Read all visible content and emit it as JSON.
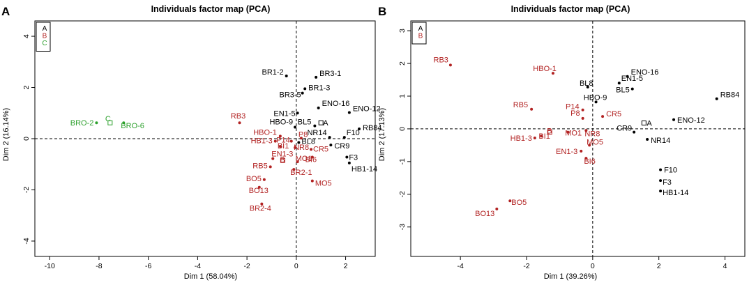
{
  "colors": {
    "A": "#000000",
    "B": "#b22222",
    "C": "#2ca02c"
  },
  "chart_data": [
    {
      "panel_label": "A",
      "type": "scatter",
      "title": "Individuals factor map (PCA)",
      "xlabel": "Dim 1 (58.04%)",
      "ylabel": "Dim 2 (16.14%)",
      "xlim": [
        -10.6,
        3.2
      ],
      "ylim": [
        -4.6,
        4.6
      ],
      "xticks": [
        -10,
        -8,
        -6,
        -4,
        -2,
        0,
        2
      ],
      "yticks": [
        -4,
        -2,
        0,
        2,
        4
      ],
      "grid": false,
      "legend_position": "top-left",
      "legend": [
        "A",
        "B",
        "C"
      ],
      "points": [
        {
          "label": "BR1-2",
          "x": -0.4,
          "y": 2.45,
          "group": "A"
        },
        {
          "label": "BR3-1",
          "x": 0.8,
          "y": 2.4,
          "group": "A"
        },
        {
          "label": "BR1-3",
          "x": 0.35,
          "y": 1.95,
          "group": "A"
        },
        {
          "label": "BR3-5",
          "x": 0.25,
          "y": 1.78,
          "group": "A"
        },
        {
          "label": "ENO-16",
          "x": 0.9,
          "y": 1.2,
          "group": "A"
        },
        {
          "label": "ENO-12",
          "x": 2.15,
          "y": 1.02,
          "group": "A"
        },
        {
          "label": "EN1-5",
          "x": 0.05,
          "y": 1.0,
          "group": "A"
        },
        {
          "label": "HBO-9",
          "x": -0.05,
          "y": 0.45,
          "group": "A"
        },
        {
          "label": "BL5",
          "x": 0.75,
          "y": 0.5,
          "group": "A"
        },
        {
          "label": "RB84",
          "x": 2.55,
          "y": 0.38,
          "group": "A"
        },
        {
          "label": "NR14",
          "x": 1.35,
          "y": 0.05,
          "group": "A"
        },
        {
          "label": "F10",
          "x": 1.95,
          "y": 0.05,
          "group": "A"
        },
        {
          "label": "BL8",
          "x": 0.1,
          "y": -0.15,
          "group": "A"
        },
        {
          "label": "CR9",
          "x": 1.4,
          "y": -0.25,
          "group": "A"
        },
        {
          "label": "F3",
          "x": 2.05,
          "y": -0.72,
          "group": "A"
        },
        {
          "label": "HB1-14",
          "x": 2.15,
          "y": -0.95,
          "group": "A"
        },
        {
          "label": "A",
          "x": 1.0,
          "y": 0.62,
          "group": "A",
          "centroid": true
        },
        {
          "label": "RB3",
          "x": -2.3,
          "y": 0.62,
          "group": "B"
        },
        {
          "label": "HBO-1",
          "x": -0.65,
          "y": 0.1,
          "group": "B"
        },
        {
          "label": "P8",
          "x": 0.2,
          "y": 0.02,
          "group": "B"
        },
        {
          "label": "HB1-3",
          "x": -0.85,
          "y": -0.1,
          "group": "B"
        },
        {
          "label": "P14",
          "x": -0.2,
          "y": -0.1,
          "group": "B"
        },
        {
          "label": "BI1",
          "x": -0.65,
          "y": -0.3,
          "group": "B"
        },
        {
          "label": "NR8",
          "x": -0.05,
          "y": -0.35,
          "group": "B"
        },
        {
          "label": "CR5",
          "x": 0.6,
          "y": -0.42,
          "group": "B"
        },
        {
          "label": "EN1-3",
          "x": -0.95,
          "y": -0.78,
          "group": "B"
        },
        {
          "label": "BI6",
          "x": 0.65,
          "y": -0.72,
          "group": "B"
        },
        {
          "label": "MO1",
          "x": 0.05,
          "y": -0.9,
          "group": "B"
        },
        {
          "label": "RB5",
          "x": -1.05,
          "y": -1.1,
          "group": "B"
        },
        {
          "label": "BR2-1",
          "x": -0.1,
          "y": -1.2,
          "group": "B"
        },
        {
          "label": "BO5",
          "x": -1.3,
          "y": -1.6,
          "group": "B"
        },
        {
          "label": "MO5",
          "x": 0.65,
          "y": -1.65,
          "group": "B"
        },
        {
          "label": "BO13",
          "x": -1.5,
          "y": -1.9,
          "group": "B"
        },
        {
          "label": "BR2-4",
          "x": -1.4,
          "y": -2.55,
          "group": "B"
        },
        {
          "label": "B",
          "x": -0.55,
          "y": -0.85,
          "group": "B",
          "centroid": true
        },
        {
          "label": "BRO-2",
          "x": -8.1,
          "y": 0.62,
          "group": "C"
        },
        {
          "label": "BRO-6",
          "x": -7.0,
          "y": 0.62,
          "group": "C"
        },
        {
          "label": "C",
          "x": -7.55,
          "y": 0.62,
          "group": "C",
          "centroid": true
        }
      ]
    },
    {
      "panel_label": "B",
      "type": "scatter",
      "title": "Individuals factor map (PCA)",
      "xlabel": "Dim 1 (39.26%)",
      "ylabel": "Dim 2 (17.13%)",
      "xlim": [
        -5.5,
        4.6
      ],
      "ylim": [
        -3.9,
        3.3
      ],
      "xticks": [
        -4,
        -2,
        0,
        2,
        4
      ],
      "yticks": [
        -3,
        -2,
        -1,
        0,
        1,
        2,
        3
      ],
      "grid": false,
      "legend_position": "top-left",
      "legend": [
        "A",
        "B"
      ],
      "points": [
        {
          "label": "ENO-16",
          "x": 1.05,
          "y": 1.6,
          "group": "A"
        },
        {
          "label": "EN1-5",
          "x": 0.8,
          "y": 1.4,
          "group": "A"
        },
        {
          "label": "BL5",
          "x": 1.2,
          "y": 1.22,
          "group": "A"
        },
        {
          "label": "BL8",
          "x": -0.15,
          "y": 1.28,
          "group": "A"
        },
        {
          "label": "HBO-9",
          "x": 0.1,
          "y": 0.82,
          "group": "A"
        },
        {
          "label": "RB84",
          "x": 3.75,
          "y": 0.92,
          "group": "A"
        },
        {
          "label": "ENO-12",
          "x": 2.45,
          "y": 0.28,
          "group": "A"
        },
        {
          "label": "CR9",
          "x": 1.25,
          "y": -0.1,
          "group": "A"
        },
        {
          "label": "NR14",
          "x": 1.65,
          "y": -0.32,
          "group": "A"
        },
        {
          "label": "F10",
          "x": 2.05,
          "y": -1.25,
          "group": "A"
        },
        {
          "label": "F3",
          "x": 2.05,
          "y": -1.58,
          "group": "A"
        },
        {
          "label": "HB1-14",
          "x": 2.05,
          "y": -1.9,
          "group": "A"
        },
        {
          "label": "A",
          "x": 1.55,
          "y": 0.18,
          "group": "A",
          "centroid": true
        },
        {
          "label": "RB3",
          "x": -4.3,
          "y": 1.95,
          "group": "B"
        },
        {
          "label": "HBO-1",
          "x": -1.2,
          "y": 1.7,
          "group": "B"
        },
        {
          "label": "RB5",
          "x": -1.85,
          "y": 0.6,
          "group": "B"
        },
        {
          "label": "P14",
          "x": -0.3,
          "y": 0.58,
          "group": "B"
        },
        {
          "label": "CR5",
          "x": 0.3,
          "y": 0.38,
          "group": "B"
        },
        {
          "label": "P8",
          "x": -0.3,
          "y": 0.32,
          "group": "B"
        },
        {
          "label": "MO1",
          "x": -0.75,
          "y": -0.1,
          "group": "B"
        },
        {
          "label": "NR8",
          "x": -0.2,
          "y": -0.05,
          "group": "B"
        },
        {
          "label": "BI1",
          "x": -1.55,
          "y": -0.22,
          "group": "B"
        },
        {
          "label": "HB1-3",
          "x": -1.75,
          "y": -0.28,
          "group": "B"
        },
        {
          "label": "MO5",
          "x": -0.1,
          "y": -0.5,
          "group": "B"
        },
        {
          "label": "EN1-3",
          "x": -0.35,
          "y": -0.68,
          "group": "B"
        },
        {
          "label": "BI6",
          "x": -0.2,
          "y": -0.9,
          "group": "B"
        },
        {
          "label": "BO5",
          "x": -2.5,
          "y": -2.2,
          "group": "B"
        },
        {
          "label": "BO13",
          "x": -2.9,
          "y": -2.45,
          "group": "B"
        },
        {
          "label": "B",
          "x": -1.3,
          "y": -0.1,
          "group": "B",
          "centroid": true
        }
      ]
    }
  ]
}
